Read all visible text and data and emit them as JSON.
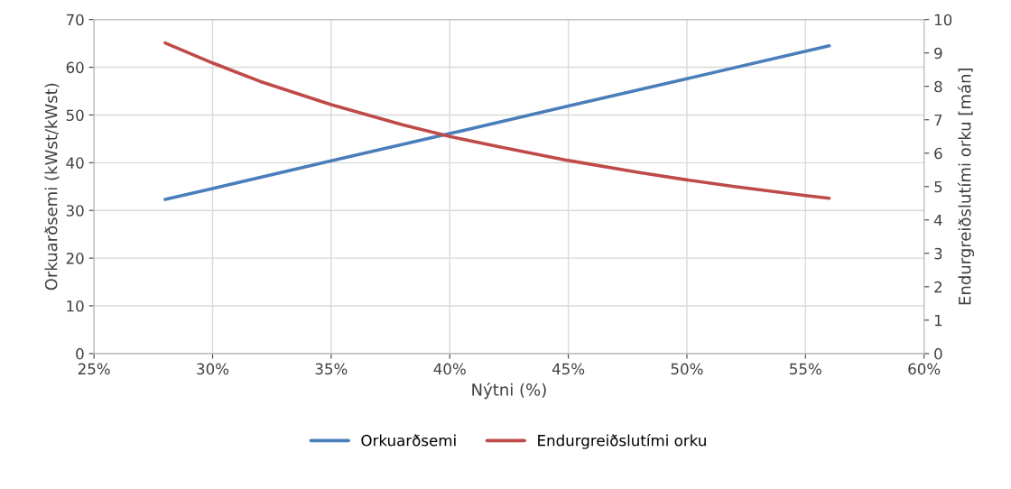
{
  "chart_data": {
    "type": "line",
    "xlabel": "Nýtni (%)",
    "ylabel": "Orkuarðsemi (kWst/kWst)",
    "y2label": "Endurgreiðslutími orku [mán]",
    "series": [
      {
        "name": "Orkuarðsemi",
        "color": "#4a7ebb",
        "x": [
          28,
          30,
          35,
          40,
          45,
          50,
          56
        ],
        "values": [
          32.3,
          34.6,
          40.4,
          46.1,
          51.9,
          57.6,
          64.5
        ]
      },
      {
        "name": "Endurgreiðslutími orku",
        "color": "#be4b48",
        "axis": "y2",
        "x": [
          28,
          30,
          32,
          35,
          38,
          40,
          42,
          45,
          48,
          50,
          52,
          55,
          56
        ],
        "values": [
          9.3,
          8.7,
          8.15,
          7.45,
          6.85,
          6.5,
          6.2,
          5.78,
          5.42,
          5.2,
          5.0,
          4.73,
          4.65
        ]
      }
    ],
    "xlim": [
      25,
      60
    ],
    "xticks": [
      {
        "value": 25,
        "label": "25%"
      },
      {
        "value": 30,
        "label": "30%"
      },
      {
        "value": 35,
        "label": "35%"
      },
      {
        "value": 40,
        "label": "40%"
      },
      {
        "value": 45,
        "label": "45%"
      },
      {
        "value": 50,
        "label": "50%"
      },
      {
        "value": 55,
        "label": "55%"
      },
      {
        "value": 60,
        "label": "60%"
      }
    ],
    "ylim": [
      0,
      70
    ],
    "yticks": [
      0,
      10,
      20,
      30,
      40,
      50,
      60,
      70
    ],
    "y2lim": [
      0,
      10
    ],
    "y2ticks": [
      0,
      1,
      2,
      3,
      4,
      5,
      6,
      7,
      8,
      9,
      10
    ],
    "grid": true,
    "legend": "bottom",
    "marker": "none",
    "line_style": "solid"
  }
}
